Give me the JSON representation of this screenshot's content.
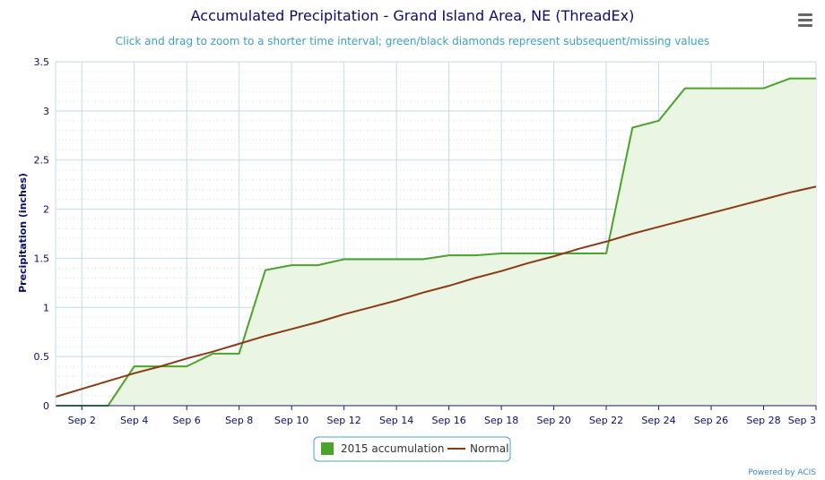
{
  "chart_data": {
    "type": "line",
    "title": "Accumulated Precipitation - Grand Island Area, NE (ThreadEx)",
    "subtitle": "Click and drag to zoom to a shorter time interval; green/black diamonds represent subsequent/missing values",
    "ylabel": "Precipitation (inches)",
    "xlabel": "",
    "ylim": [
      0,
      3.5
    ],
    "yticks": [
      "0",
      "0.5",
      "1",
      "1.5",
      "2",
      "2.5",
      "3",
      "3.5"
    ],
    "xlim": [
      1,
      30
    ],
    "xticks": [
      {
        "x": 2,
        "label": "Sep 2"
      },
      {
        "x": 4,
        "label": "Sep 4"
      },
      {
        "x": 6,
        "label": "Sep 6"
      },
      {
        "x": 8,
        "label": "Sep 8"
      },
      {
        "x": 10,
        "label": "Sep 10"
      },
      {
        "x": 12,
        "label": "Sep 12"
      },
      {
        "x": 14,
        "label": "Sep 14"
      },
      {
        "x": 16,
        "label": "Sep 16"
      },
      {
        "x": 18,
        "label": "Sep 18"
      },
      {
        "x": 20,
        "label": "Sep 20"
      },
      {
        "x": 22,
        "label": "Sep 22"
      },
      {
        "x": 24,
        "label": "Sep 24"
      },
      {
        "x": 26,
        "label": "Sep 26"
      },
      {
        "x": 28,
        "label": "Sep 28"
      },
      {
        "x": 30,
        "label": "Sep 3"
      }
    ],
    "grid": true,
    "legend_position": "bottom-center",
    "series": [
      {
        "name": "2015 accumulation",
        "color": "#4aa32a",
        "fill": "#eaf5e4",
        "x": [
          1,
          2,
          3,
          4,
          5,
          6,
          7,
          8,
          9,
          10,
          11,
          12,
          13,
          14,
          15,
          16,
          17,
          18,
          19,
          20,
          21,
          22,
          23,
          24,
          25,
          26,
          27,
          28,
          29,
          30
        ],
        "values": [
          0,
          0,
          0,
          0.4,
          0.4,
          0.4,
          0.53,
          0.53,
          1.38,
          1.43,
          1.43,
          1.49,
          1.49,
          1.49,
          1.49,
          1.53,
          1.53,
          1.55,
          1.55,
          1.55,
          1.55,
          1.55,
          2.83,
          2.9,
          3.23,
          3.23,
          3.23,
          3.23,
          3.33,
          3.33
        ]
      },
      {
        "name": "Normal",
        "color": "#8b3a12",
        "x": [
          1,
          2,
          3,
          4,
          5,
          6,
          7,
          8,
          9,
          10,
          11,
          12,
          13,
          14,
          15,
          16,
          17,
          18,
          19,
          20,
          21,
          22,
          23,
          24,
          25,
          26,
          27,
          28,
          29,
          30
        ],
        "values": [
          0.09,
          0.17,
          0.25,
          0.33,
          0.4,
          0.48,
          0.55,
          0.63,
          0.71,
          0.78,
          0.85,
          0.93,
          1.0,
          1.07,
          1.15,
          1.22,
          1.3,
          1.37,
          1.45,
          1.52,
          1.6,
          1.67,
          1.75,
          1.82,
          1.89,
          1.96,
          2.03,
          2.1,
          2.17,
          2.23
        ]
      }
    ]
  },
  "credit": "Powered by ACIS",
  "menu_icon": "hamburger-menu-icon"
}
